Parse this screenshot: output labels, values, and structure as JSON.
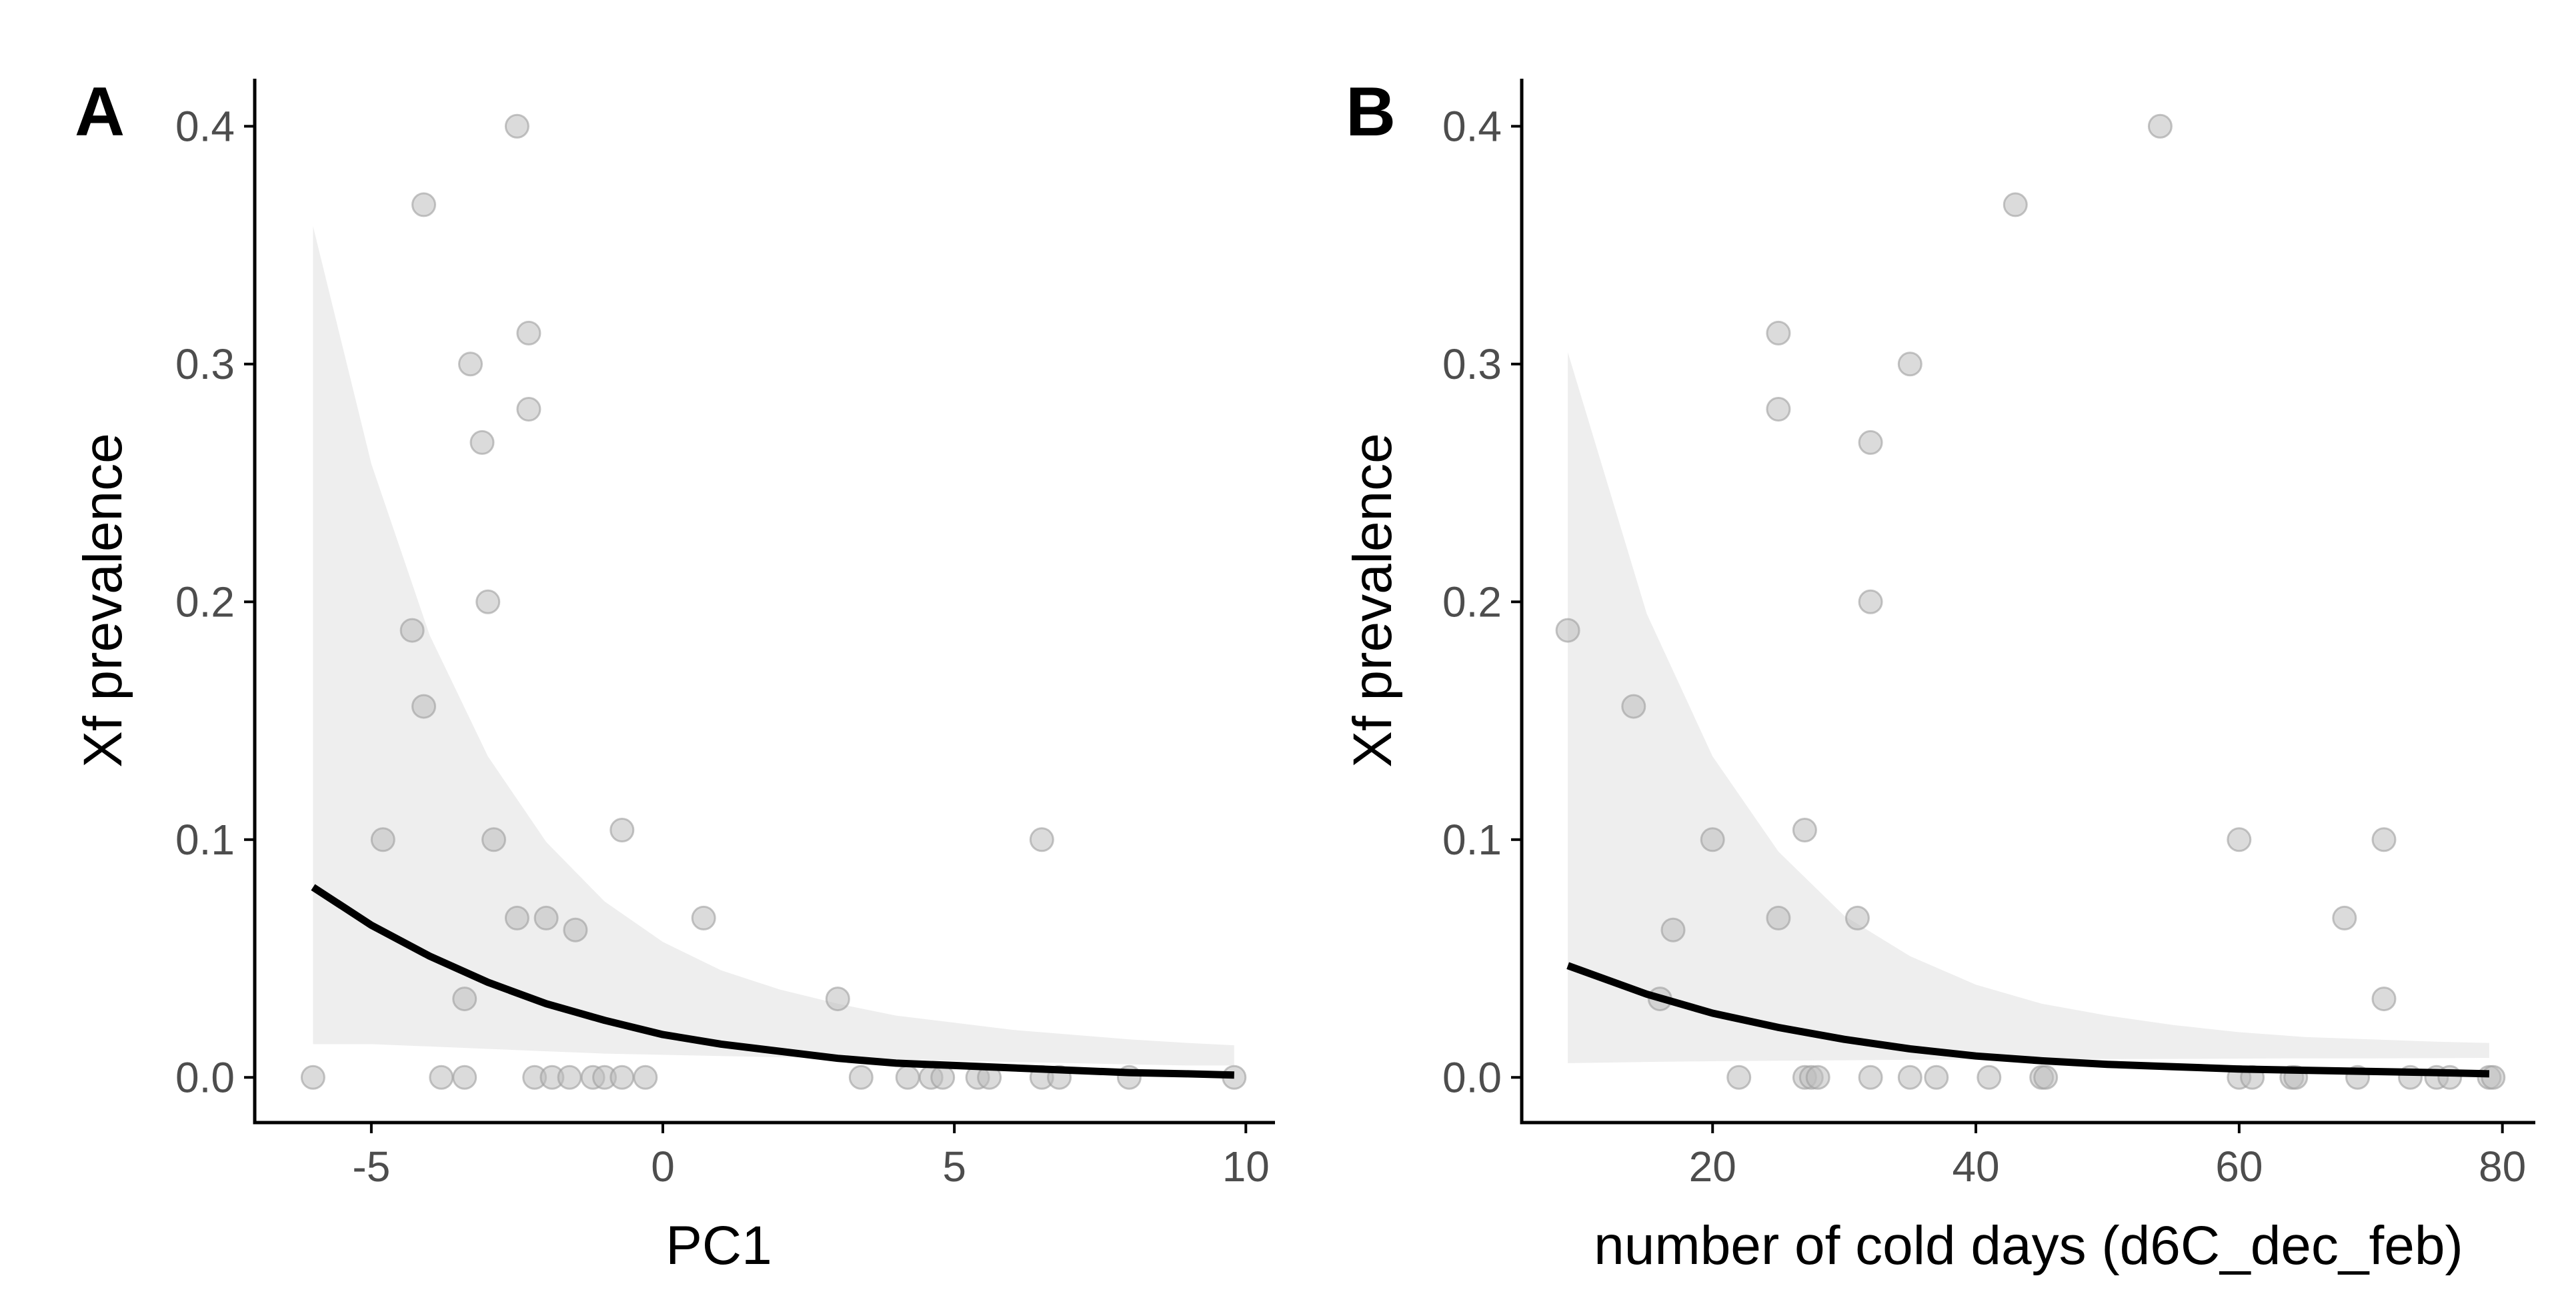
{
  "colors": {
    "points": "#bdbdbd",
    "point_stroke": "#9e9e9e",
    "ribbon": "#ebebeb",
    "fit_line": "#000000",
    "axis": "#000000",
    "tick_text": "#4d4d4d"
  },
  "chart_data": [
    {
      "type": "scatter",
      "panel_label": "A",
      "xlabel": "PC1",
      "ylabel": "Xf prevalence",
      "xlim": [
        -7,
        10.5
      ],
      "ylim": [
        -0.019,
        0.42
      ],
      "xticks": [
        -5,
        0,
        5,
        10
      ],
      "xtick_labels": [
        "-5",
        "0",
        "5",
        "10"
      ],
      "yticks": [
        0.0,
        0.1,
        0.2,
        0.3,
        0.4
      ],
      "ytick_labels": [
        "0.0",
        "0.1",
        "0.2",
        "0.3",
        "0.4"
      ],
      "grid": false,
      "points": [
        {
          "x": -6.0,
          "y": 0.0
        },
        {
          "x": -2.5,
          "y": 0.4
        },
        {
          "x": -4.1,
          "y": 0.367
        },
        {
          "x": -3.3,
          "y": 0.3
        },
        {
          "x": -2.3,
          "y": 0.313
        },
        {
          "x": -2.3,
          "y": 0.281
        },
        {
          "x": -3.1,
          "y": 0.267
        },
        {
          "x": -3.0,
          "y": 0.2
        },
        {
          "x": -4.3,
          "y": 0.188
        },
        {
          "x": -4.1,
          "y": 0.156
        },
        {
          "x": -4.8,
          "y": 0.1
        },
        {
          "x": -2.9,
          "y": 0.1
        },
        {
          "x": -0.7,
          "y": 0.104
        },
        {
          "x": -2.5,
          "y": 0.067
        },
        {
          "x": -2.0,
          "y": 0.067
        },
        {
          "x": -1.5,
          "y": 0.062
        },
        {
          "x": 0.7,
          "y": 0.067
        },
        {
          "x": -3.4,
          "y": 0.033
        },
        {
          "x": 3.0,
          "y": 0.033
        },
        {
          "x": 6.5,
          "y": 0.1
        },
        {
          "x": -3.8,
          "y": 0.0
        },
        {
          "x": -3.4,
          "y": 0.0
        },
        {
          "x": -2.2,
          "y": 0.0
        },
        {
          "x": -1.9,
          "y": 0.0
        },
        {
          "x": -1.6,
          "y": 0.0
        },
        {
          "x": -1.2,
          "y": 0.0
        },
        {
          "x": -1.0,
          "y": 0.0
        },
        {
          "x": -0.7,
          "y": 0.0
        },
        {
          "x": -0.3,
          "y": 0.0
        },
        {
          "x": 3.4,
          "y": 0.0
        },
        {
          "x": 4.2,
          "y": 0.0
        },
        {
          "x": 4.6,
          "y": 0.0
        },
        {
          "x": 4.8,
          "y": 0.0
        },
        {
          "x": 5.4,
          "y": 0.0
        },
        {
          "x": 5.6,
          "y": 0.0
        },
        {
          "x": 6.5,
          "y": 0.0
        },
        {
          "x": 6.8,
          "y": 0.0
        },
        {
          "x": 8.0,
          "y": 0.0
        },
        {
          "x": 9.8,
          "y": 0.0
        }
      ],
      "fit": {
        "x": [
          -6.0,
          -5.0,
          -4.0,
          -3.0,
          -2.0,
          -1.0,
          0.0,
          1.0,
          2.0,
          3.0,
          4.0,
          5.0,
          6.0,
          7.0,
          8.0,
          9.0,
          9.8
        ],
        "y": [
          0.08,
          0.064,
          0.051,
          0.04,
          0.031,
          0.024,
          0.018,
          0.014,
          0.011,
          0.008,
          0.006,
          0.005,
          0.004,
          0.003,
          0.002,
          0.0015,
          0.001
        ],
        "lower": [
          0.014,
          0.014,
          0.013,
          0.012,
          0.011,
          0.01,
          0.0095,
          0.009,
          0.0085,
          0.008,
          0.0075,
          0.007,
          0.0065,
          0.006,
          0.0055,
          0.005,
          0.005
        ],
        "upper": [
          0.358,
          0.258,
          0.186,
          0.135,
          0.099,
          0.074,
          0.057,
          0.045,
          0.037,
          0.031,
          0.026,
          0.023,
          0.02,
          0.018,
          0.016,
          0.0145,
          0.0135
        ]
      }
    },
    {
      "type": "scatter",
      "panel_label": "B",
      "xlabel": "number of cold days (d6C_dec_feb)",
      "ylabel": "Xf prevalence",
      "xlim": [
        5.5,
        82.5
      ],
      "ylim": [
        -0.019,
        0.42
      ],
      "xticks": [
        20,
        40,
        60,
        80
      ],
      "xtick_labels": [
        "20",
        "40",
        "60",
        "80"
      ],
      "yticks": [
        0.0,
        0.1,
        0.2,
        0.3,
        0.4
      ],
      "ytick_labels": [
        "0.0",
        "0.1",
        "0.2",
        "0.3",
        "0.4"
      ],
      "grid": false,
      "points": [
        {
          "x": 54,
          "y": 0.4
        },
        {
          "x": 43,
          "y": 0.367
        },
        {
          "x": 25,
          "y": 0.313
        },
        {
          "x": 35,
          "y": 0.3
        },
        {
          "x": 25,
          "y": 0.281
        },
        {
          "x": 32,
          "y": 0.267
        },
        {
          "x": 32,
          "y": 0.2
        },
        {
          "x": 9,
          "y": 0.188
        },
        {
          "x": 14,
          "y": 0.156
        },
        {
          "x": 20,
          "y": 0.1
        },
        {
          "x": 27,
          "y": 0.104
        },
        {
          "x": 60,
          "y": 0.1
        },
        {
          "x": 71,
          "y": 0.1
        },
        {
          "x": 25,
          "y": 0.067
        },
        {
          "x": 31,
          "y": 0.067
        },
        {
          "x": 68,
          "y": 0.067
        },
        {
          "x": 17,
          "y": 0.062
        },
        {
          "x": 16,
          "y": 0.033
        },
        {
          "x": 71,
          "y": 0.033
        },
        {
          "x": 22,
          "y": 0.0
        },
        {
          "x": 27,
          "y": 0.0
        },
        {
          "x": 27.5,
          "y": 0.0
        },
        {
          "x": 28,
          "y": 0.0
        },
        {
          "x": 32,
          "y": 0.0
        },
        {
          "x": 35,
          "y": 0.0
        },
        {
          "x": 37,
          "y": 0.0
        },
        {
          "x": 41,
          "y": 0.0
        },
        {
          "x": 45,
          "y": 0.0
        },
        {
          "x": 45.3,
          "y": 0.0
        },
        {
          "x": 60,
          "y": 0.0
        },
        {
          "x": 61,
          "y": 0.0
        },
        {
          "x": 64,
          "y": 0.0
        },
        {
          "x": 64.3,
          "y": 0.0
        },
        {
          "x": 69,
          "y": 0.0
        },
        {
          "x": 73,
          "y": 0.0
        },
        {
          "x": 75,
          "y": 0.0
        },
        {
          "x": 76,
          "y": 0.0
        },
        {
          "x": 79,
          "y": 0.0
        },
        {
          "x": 79.3,
          "y": 0.0
        }
      ],
      "fit": {
        "x": [
          9,
          15,
          20,
          25,
          30,
          35,
          40,
          45,
          50,
          55,
          60,
          65,
          70,
          75,
          79
        ],
        "y": [
          0.047,
          0.035,
          0.027,
          0.021,
          0.016,
          0.012,
          0.009,
          0.007,
          0.0055,
          0.0045,
          0.0035,
          0.003,
          0.0025,
          0.002,
          0.0015
        ],
        "lower": [
          0.006,
          0.0065,
          0.0068,
          0.007,
          0.0072,
          0.0074,
          0.0075,
          0.0076,
          0.0077,
          0.0078,
          0.0079,
          0.008,
          0.008,
          0.0081,
          0.0082
        ],
        "upper": [
          0.305,
          0.195,
          0.135,
          0.095,
          0.068,
          0.051,
          0.039,
          0.031,
          0.026,
          0.022,
          0.019,
          0.017,
          0.016,
          0.015,
          0.0145
        ]
      }
    }
  ]
}
